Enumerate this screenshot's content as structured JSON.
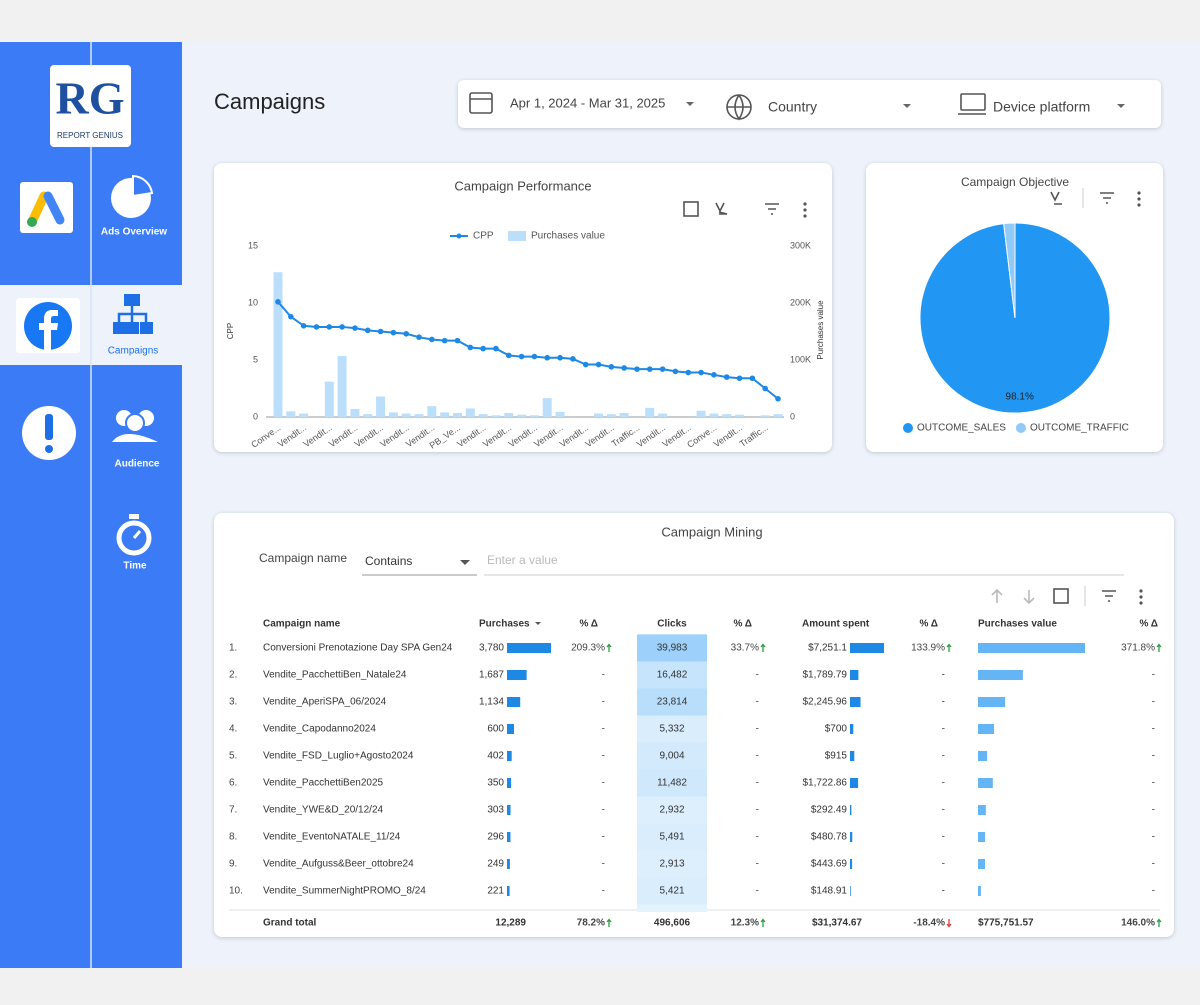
{
  "sidebar": {
    "logo": {
      "mark": "RG",
      "name": "REPORT GENIUS"
    },
    "nav": [
      "Ads Overview",
      "Campaigns",
      "Audience",
      "Time"
    ],
    "active": 1
  },
  "header": {
    "title": "Campaigns",
    "filters": [
      "Apr 1, 2024 - Mar 31, 2025",
      "Country",
      "Device platform"
    ]
  },
  "chart_data": [
    {
      "type": "combo",
      "title": "Campaign Performance",
      "categories": [
        "Conve...",
        null,
        "Vendit...",
        null,
        "Vendit...",
        null,
        "Vendit...",
        null,
        "Vendit...",
        null,
        "Vendit...",
        null,
        "Vendit...",
        null,
        "PB_Ve...",
        null,
        "Vendit...",
        null,
        "Vendit...",
        null,
        "Vendit...",
        null,
        "Vendit...",
        null,
        "Vendit...",
        null,
        "Vendit...",
        null,
        "Traffic...",
        null,
        "Vendit...",
        null,
        "Vendit...",
        null,
        "Conve...",
        null,
        "Vendit...",
        null,
        "Traffic...",
        null
      ],
      "series": [
        {
          "name": "CPP",
          "type": "line",
          "color": "#1e88e5",
          "values": [
            10.1,
            8.8,
            8.0,
            7.9,
            7.9,
            7.9,
            7.8,
            7.6,
            7.5,
            7.4,
            7.3,
            7.0,
            6.8,
            6.7,
            6.7,
            6.1,
            6.0,
            6.0,
            5.4,
            5.3,
            5.3,
            5.2,
            5.2,
            5.1,
            4.6,
            4.6,
            4.4,
            4.3,
            4.2,
            4.2,
            4.2,
            4.0,
            3.9,
            3.9,
            3.7,
            3.5,
            3.4,
            3.4,
            2.5,
            1.6
          ]
        },
        {
          "name": "Purchases value",
          "type": "bar",
          "color": "#bbdefb",
          "axis": "y2",
          "values": [
            254000,
            10000,
            6000,
            0,
            62000,
            107000,
            14000,
            5000,
            36000,
            8000,
            6000,
            5000,
            19000,
            8000,
            7000,
            15000,
            5000,
            3000,
            7000,
            4000,
            3000,
            33000,
            9000,
            0,
            0,
            6000,
            5000,
            7000,
            0,
            16000,
            6000,
            0,
            0,
            11000,
            6000,
            5000,
            4000,
            0,
            3000,
            5000
          ]
        }
      ],
      "ylabel": "CPP",
      "y2label": "Purchases value",
      "ylim": [
        0,
        15
      ],
      "yticks": [
        0,
        5,
        10,
        15
      ],
      "y2lim": [
        0,
        300000
      ],
      "y2ticks": [
        0,
        {
          "value": 100000,
          "label": "100K"
        },
        {
          "value": 200000,
          "label": "200K"
        },
        {
          "value": 300000,
          "label": "300K"
        }
      ],
      "legend": "top"
    },
    {
      "type": "pie",
      "title": "Campaign Objective",
      "categories": [
        "OUTCOME_SALES",
        "OUTCOME_TRAFFIC"
      ],
      "values": [
        98.1,
        1.9
      ],
      "value_labels": [
        "98.1%",
        null
      ],
      "colors": [
        "#2196f3",
        "#90caf9"
      ],
      "legend": "bottom"
    }
  ],
  "table": {
    "title": "Campaign Mining",
    "filter": {
      "field": "Campaign name",
      "operator": "Contains",
      "placeholder": "Enter a value"
    },
    "columns": [
      "Campaign name",
      "Purchases",
      "% Δ",
      "Clicks",
      "% Δ",
      "Amount spent",
      "% Δ",
      "Purchases value",
      "% Δ"
    ],
    "rows": [
      {
        "index": "1.",
        "name": "Conversioni Prenotazione Day SPA Gen24",
        "purchases": {
          "value": 3780,
          "label": "3,780"
        },
        "purchases_delta": {
          "label": "209.3%",
          "trend": "up"
        },
        "clicks": {
          "value": 39983,
          "label": "39,983"
        },
        "clicks_delta": {
          "label": "33.7%",
          "trend": "up"
        },
        "amount_spent": {
          "value": 7251.1,
          "label": "$7,251.1"
        },
        "amount_spent_delta": {
          "label": "133.9%",
          "trend": "up"
        },
        "purchases_value": 260000,
        "purchases_value_delta": {
          "label": "371.8%",
          "trend": "up"
        }
      },
      {
        "index": "2.",
        "name": "Vendite_PacchettiBen_Natale24",
        "purchases": {
          "value": 1687,
          "label": "1,687"
        },
        "purchases_delta": "-",
        "clicks": {
          "value": 16482,
          "label": "16,482"
        },
        "clicks_delta": "-",
        "amount_spent": {
          "value": 1789.79,
          "label": "$1,789.79"
        },
        "amount_spent_delta": "-",
        "purchases_value": 109000,
        "purchases_value_delta": "-"
      },
      {
        "index": "3.",
        "name": "Vendite_AperiSPA_06/2024",
        "purchases": {
          "value": 1134,
          "label": "1,134"
        },
        "purchases_delta": "-",
        "clicks": {
          "value": 23814,
          "label": "23,814"
        },
        "clicks_delta": "-",
        "amount_spent": {
          "value": 2245.96,
          "label": "$2,245.96"
        },
        "amount_spent_delta": "-",
        "purchases_value": 66000,
        "purchases_value_delta": "-"
      },
      {
        "index": "4.",
        "name": "Vendite_Capodanno2024",
        "purchases": {
          "value": 600,
          "label": "600"
        },
        "purchases_delta": "-",
        "clicks": {
          "value": 5332,
          "label": "5,332"
        },
        "clicks_delta": "-",
        "amount_spent": {
          "value": 700,
          "label": "$700"
        },
        "amount_spent_delta": "-",
        "purchases_value": 39000,
        "purchases_value_delta": "-"
      },
      {
        "index": "5.",
        "name": "Vendite_FSD_Luglio+Agosto2024",
        "purchases": {
          "value": 402,
          "label": "402"
        },
        "purchases_delta": "-",
        "clicks": {
          "value": 9004,
          "label": "9,004"
        },
        "clicks_delta": "-",
        "amount_spent": {
          "value": 915,
          "label": "$915"
        },
        "amount_spent_delta": "-",
        "purchases_value": 22000,
        "purchases_value_delta": "-"
      },
      {
        "index": "6.",
        "name": "Vendite_PacchettiBen2025",
        "purchases": {
          "value": 350,
          "label": "350"
        },
        "purchases_delta": "-",
        "clicks": {
          "value": 11482,
          "label": "11,482"
        },
        "clicks_delta": "-",
        "amount_spent": {
          "value": 1722.86,
          "label": "$1,722.86"
        },
        "amount_spent_delta": "-",
        "purchases_value": 36000,
        "purchases_value_delta": "-"
      },
      {
        "index": "7.",
        "name": "Vendite_YWE&D_20/12/24",
        "purchases": {
          "value": 303,
          "label": "303"
        },
        "purchases_delta": "-",
        "clicks": {
          "value": 2932,
          "label": "2,932"
        },
        "clicks_delta": "-",
        "amount_spent": {
          "value": 292.49,
          "label": "$292.49"
        },
        "amount_spent_delta": "-",
        "purchases_value": 19000,
        "purchases_value_delta": "-"
      },
      {
        "index": "8.",
        "name": "Vendite_EventoNATALE_11/24",
        "purchases": {
          "value": 296,
          "label": "296"
        },
        "purchases_delta": "-",
        "clicks": {
          "value": 5491,
          "label": "5,491"
        },
        "clicks_delta": "-",
        "amount_spent": {
          "value": 480.78,
          "label": "$480.78"
        },
        "amount_spent_delta": "-",
        "purchases_value": 17000,
        "purchases_value_delta": "-"
      },
      {
        "index": "9.",
        "name": "Vendite_Aufguss&Beer_ottobre24",
        "purchases": {
          "value": 249,
          "label": "249"
        },
        "purchases_delta": "-",
        "clicks": {
          "value": 2913,
          "label": "2,913"
        },
        "clicks_delta": "-",
        "amount_spent": {
          "value": 443.69,
          "label": "$443.69"
        },
        "amount_spent_delta": "-",
        "purchases_value": 17000,
        "purchases_value_delta": "-"
      },
      {
        "index": "10.",
        "name": "Vendite_SummerNightPROMO_8/24",
        "purchases": {
          "value": 221,
          "label": "221"
        },
        "purchases_delta": "-",
        "clicks": {
          "value": 5421,
          "label": "5,421"
        },
        "clicks_delta": "-",
        "amount_spent": {
          "value": 148.91,
          "label": "$148.91"
        },
        "amount_spent_delta": "-",
        "purchases_value": 7000,
        "purchases_value_delta": "-"
      }
    ],
    "total": {
      "label": "Grand total",
      "purchases": "12,289",
      "purchases_delta": {
        "label": "78.2%",
        "trend": "up"
      },
      "clicks": "496,606",
      "clicks_delta": {
        "label": "12.3%",
        "trend": "up"
      },
      "amount_spent": "$31,374.67",
      "amount_spent_delta": {
        "label": "-18.4%",
        "trend": "down"
      },
      "purchases_value": "$775,751.57",
      "purchases_value_delta": {
        "label": "146.0%",
        "trend": "up"
      }
    }
  }
}
